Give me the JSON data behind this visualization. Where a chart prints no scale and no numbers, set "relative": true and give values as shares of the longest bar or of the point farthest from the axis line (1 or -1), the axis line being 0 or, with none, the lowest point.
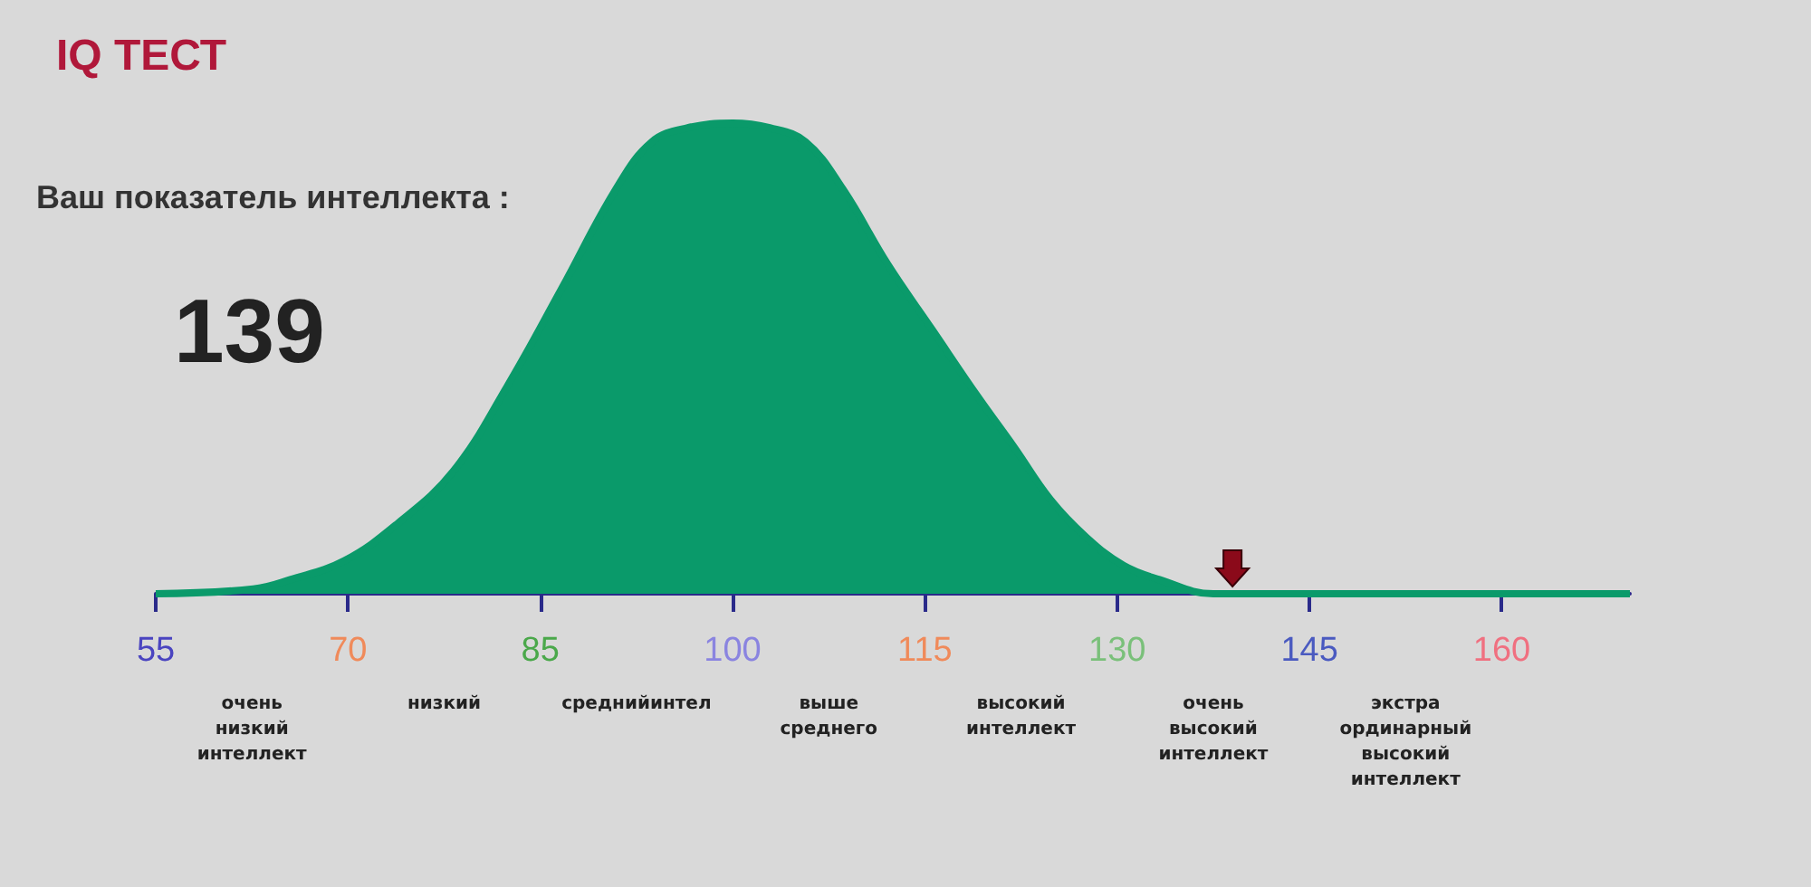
{
  "chart_data": {
    "type": "area",
    "title": "IQ ТЕСТ",
    "relative": true,
    "color": "#0a9a6a",
    "x": [
      55,
      62.6,
      65.5,
      69.7,
      73.9,
      78.2,
      82.4,
      86.7,
      90.9,
      93.7,
      96.5,
      100,
      102.9,
      105.7,
      108.6,
      112.1,
      115.6,
      119.1,
      122,
      124.8,
      127.6,
      130.5,
      133.3,
      137.5,
      170
    ],
    "values": [
      0,
      0.01,
      0.03,
      0.07,
      0.15,
      0.26,
      0.44,
      0.65,
      0.86,
      0.96,
      0.99,
      1,
      0.99,
      0.96,
      0.86,
      0.7,
      0.56,
      0.42,
      0.31,
      0.2,
      0.12,
      0.06,
      0.03,
      0,
      0
    ],
    "xlim": [
      55,
      170
    ],
    "xticks": [
      55,
      70,
      85,
      100,
      115,
      130,
      145,
      160
    ],
    "grid": false,
    "marker": "none",
    "annotations": [
      "Ваш показатель интеллекта :",
      "139",
      "очень\nнизкий\nинтеллект",
      "низкий",
      "среднийинтел",
      "выше\nсреднего",
      "высокий\nинтеллект",
      "очень\nвысокий\nинтеллект",
      "экстра\nординарный\nвысокий\nинтеллект"
    ]
  }
}
